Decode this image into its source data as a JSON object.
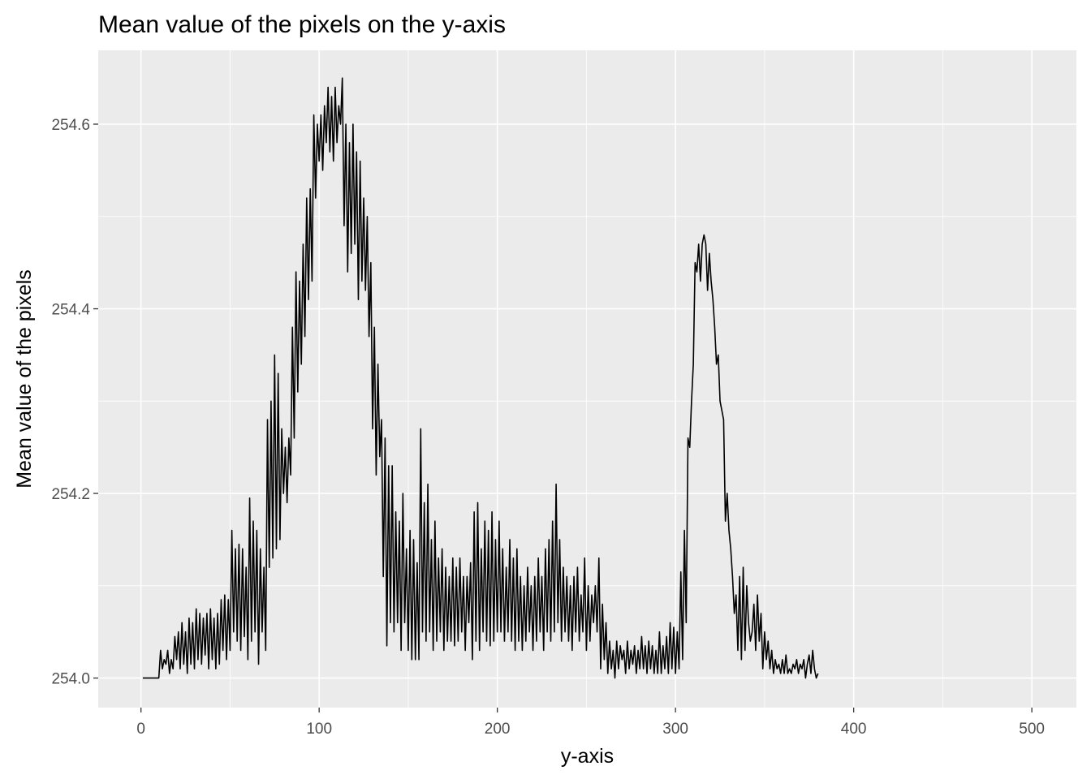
{
  "chart_data": {
    "type": "line",
    "title": "Mean value of the pixels on the y-axis",
    "xlabel": "y-axis",
    "ylabel": "Mean value of the pixels",
    "xlim": [
      -24,
      525
    ],
    "ylim": [
      253.968,
      254.68
    ],
    "x_ticks": [
      0,
      100,
      200,
      300,
      400,
      500
    ],
    "x_tick_labels": [
      "0",
      "100",
      "200",
      "300",
      "400",
      "500"
    ],
    "y_ticks": [
      254.0,
      254.2,
      254.4,
      254.6
    ],
    "y_tick_labels": [
      "254.0",
      "254.2",
      "254.4",
      "254.6"
    ],
    "grid": true,
    "background": "#ebebeb",
    "grid_color": "#ffffff",
    "line_color": "#000000",
    "series": [
      {
        "x_start": 1,
        "x_step": 1,
        "values": [
          254.0,
          254.0,
          254.0,
          254.0,
          254.0,
          254.0,
          254.0,
          254.0,
          254.0,
          254.0,
          254.03,
          254.01,
          254.02,
          254.015,
          254.03,
          254.005,
          254.02,
          254.01,
          254.045,
          254.02,
          254.05,
          254.01,
          254.06,
          254.015,
          254.05,
          254.005,
          254.065,
          254.015,
          254.06,
          254.01,
          254.075,
          254.02,
          254.07,
          254.015,
          254.065,
          254.025,
          254.07,
          254.01,
          254.075,
          254.02,
          254.065,
          254.01,
          254.07,
          254.015,
          254.085,
          254.03,
          254.09,
          254.02,
          254.085,
          254.03,
          254.16,
          254.05,
          254.14,
          254.04,
          254.145,
          254.03,
          254.14,
          254.045,
          254.12,
          254.02,
          254.195,
          254.04,
          254.17,
          254.05,
          254.16,
          254.015,
          254.14,
          254.05,
          254.12,
          254.03,
          254.28,
          254.12,
          254.3,
          254.13,
          254.35,
          254.14,
          254.33,
          254.15,
          254.27,
          254.2,
          254.25,
          254.19,
          254.26,
          254.22,
          254.38,
          254.26,
          254.44,
          254.31,
          254.43,
          254.34,
          254.47,
          254.37,
          254.52,
          254.41,
          254.53,
          254.43,
          254.61,
          254.52,
          254.6,
          254.56,
          254.61,
          254.55,
          254.62,
          254.58,
          254.64,
          254.57,
          254.63,
          254.56,
          254.64,
          254.58,
          254.62,
          254.6,
          254.65,
          254.49,
          254.6,
          254.44,
          254.58,
          254.46,
          254.6,
          254.47,
          254.57,
          254.41,
          254.56,
          254.43,
          254.52,
          254.42,
          254.5,
          254.37,
          254.45,
          254.27,
          254.38,
          254.22,
          254.34,
          254.24,
          254.28,
          254.11,
          254.26,
          254.035,
          254.23,
          254.06,
          254.23,
          254.05,
          254.18,
          254.06,
          254.17,
          254.03,
          254.2,
          254.06,
          254.14,
          254.03,
          254.16,
          254.02,
          254.15,
          254.02,
          254.125,
          254.02,
          254.27,
          254.05,
          254.19,
          254.04,
          254.21,
          254.05,
          254.15,
          254.03,
          254.17,
          254.04,
          254.13,
          254.05,
          254.14,
          254.03,
          254.12,
          254.04,
          254.11,
          254.04,
          254.13,
          254.035,
          254.12,
          254.04,
          254.13,
          254.05,
          254.11,
          254.03,
          254.11,
          254.06,
          254.125,
          254.02,
          254.18,
          254.04,
          254.19,
          254.03,
          254.14,
          254.05,
          254.17,
          254.04,
          254.16,
          254.035,
          254.18,
          254.04,
          254.15,
          254.05,
          254.17,
          254.05,
          254.14,
          254.04,
          254.12,
          254.05,
          254.15,
          254.04,
          254.13,
          254.03,
          254.14,
          254.04,
          254.11,
          254.03,
          254.1,
          254.04,
          254.12,
          254.05,
          254.1,
          254.03,
          254.11,
          254.04,
          254.13,
          254.05,
          254.11,
          254.03,
          254.14,
          254.05,
          254.15,
          254.04,
          254.17,
          254.05,
          254.21,
          254.06,
          254.15,
          254.04,
          254.12,
          254.05,
          254.11,
          254.04,
          254.1,
          254.03,
          254.11,
          254.05,
          254.12,
          254.04,
          254.09,
          254.05,
          254.13,
          254.03,
          254.1,
          254.04,
          254.09,
          254.06,
          254.1,
          254.05,
          254.13,
          254.01,
          254.08,
          254.02,
          254.06,
          254.005,
          254.04,
          254.01,
          254.03,
          254.0,
          254.04,
          254.01,
          254.035,
          254.02,
          254.03,
          254.005,
          254.04,
          254.01,
          254.03,
          254.015,
          254.035,
          254.005,
          254.03,
          254.01,
          254.045,
          254.01,
          254.035,
          254.005,
          254.04,
          254.01,
          254.035,
          254.005,
          254.03,
          254.005,
          254.05,
          254.005,
          254.035,
          254.01,
          254.045,
          254.005,
          254.06,
          254.01,
          254.055,
          254.005,
          254.05,
          254.01,
          254.115,
          254.02,
          254.16,
          254.06,
          254.26,
          254.25,
          254.3,
          254.34,
          254.45,
          254.44,
          254.47,
          254.43,
          254.47,
          254.48,
          254.47,
          254.42,
          254.46,
          254.43,
          254.41,
          254.38,
          254.34,
          254.35,
          254.3,
          254.29,
          254.28,
          254.17,
          254.2,
          254.16,
          254.14,
          254.11,
          254.07,
          254.09,
          254.03,
          254.11,
          254.02,
          254.12,
          254.03,
          254.1,
          254.06,
          254.04,
          254.05,
          254.08,
          254.03,
          254.09,
          254.04,
          254.07,
          254.01,
          254.05,
          254.02,
          254.04,
          254.01,
          254.03,
          254.005,
          254.02,
          254.01,
          254.015,
          254.005,
          254.02,
          254.005,
          254.025,
          254.005,
          254.01,
          254.005,
          254.015,
          254.01,
          254.02,
          254.005,
          254.015,
          254.01,
          254.02,
          254.0,
          254.015,
          254.025,
          254.005,
          254.03,
          254.01,
          254.0,
          254.005
        ]
      }
    ]
  }
}
